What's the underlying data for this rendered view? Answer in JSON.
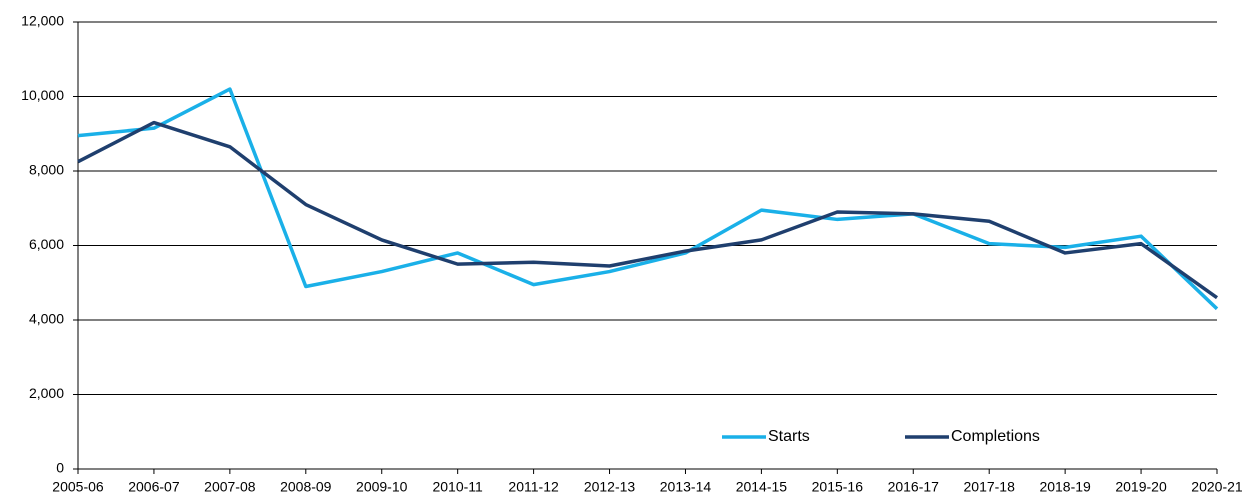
{
  "chart_data": {
    "type": "line",
    "categories": [
      "2005-06",
      "2006-07",
      "2007-08",
      "2008-09",
      "2009-10",
      "2010-11",
      "2011-12",
      "2012-13",
      "2013-14",
      "2014-15",
      "2015-16",
      "2016-17",
      "2017-18",
      "2018-19",
      "2019-20",
      "2020-21"
    ],
    "series": [
      {
        "name": "Starts",
        "color": "#1ab0e8",
        "values": [
          8950,
          9150,
          10200,
          4900,
          5300,
          5800,
          4950,
          5300,
          5800,
          6950,
          6700,
          6850,
          6050,
          5950,
          6250,
          4300
        ]
      },
      {
        "name": "Completions",
        "color": "#1f3f6e",
        "values": [
          8250,
          9300,
          8650,
          7100,
          6150,
          5500,
          5550,
          5450,
          5850,
          6150,
          6900,
          6850,
          6650,
          5800,
          6050,
          4600
        ]
      }
    ],
    "ylim": [
      0,
      12000
    ],
    "yticks": [
      0,
      {
        "value": 2000,
        "label": "2,000"
      },
      {
        "value": 4000,
        "label": "4,000"
      },
      {
        "value": 6000,
        "label": "6,000"
      },
      {
        "value": 8000,
        "label": "8,000"
      },
      {
        "value": 10000,
        "label": "10,000"
      },
      {
        "value": 12000,
        "label": "12,000"
      }
    ],
    "grid": true
  }
}
